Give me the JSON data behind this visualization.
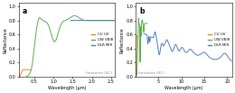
{
  "title_a": "a",
  "title_b": "b",
  "xlabel": "Wavelength (μm)",
  "ylabel": "Reflectance",
  "annotation_a": "forsterite (SC)",
  "annotation_b": "forsterite (SC)",
  "legend_labels": [
    "CU UV",
    "UW VNIR",
    "DLR MIR"
  ],
  "colors": [
    "#e8871a",
    "#5aac47",
    "#4a7fc1"
  ],
  "xlim_a": [
    0.1,
    2.6
  ],
  "xlim_b": [
    0.1,
    21
  ],
  "ylim": [
    0,
    1.05
  ],
  "yticks": [
    0.0,
    0.2,
    0.4,
    0.6,
    0.8,
    1.0
  ],
  "xticks_a": [
    0.5,
    1.0,
    1.5,
    2.0,
    2.5
  ],
  "xticks_b": [
    5,
    10,
    15,
    20
  ],
  "background_color": "#ffffff",
  "linewidth": 0.7
}
